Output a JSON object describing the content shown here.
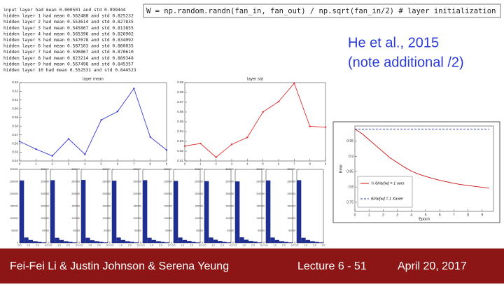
{
  "log_lines": [
    "input layer had mean 0.000501 and std 0.999444",
    "hidden layer 1 had mean 0.562488 and std 0.825232",
    "hidden layer 2 had mean 0.553614 and std 0.827835",
    "hidden layer 3 had mean 0.545867 and std 0.813855",
    "hidden layer 4 had mean 0.565396 and std 0.826902",
    "hidden layer 5 had mean 0.547678 and std 0.834092",
    "hidden layer 6 had mean 0.587103 and std 0.860035",
    "hidden layer 7 had mean 0.596867 and std 0.870610",
    "hidden layer 8 had mean 0.623214 and std 0.889348",
    "hidden layer 9 had mean 0.567498 and std 0.845357",
    "hidden layer 10 had mean 0.552531 and std 0.844523"
  ],
  "code": "W = np.random.randn(fan_in, fan_out) / np.sqrt(fan_in/2) # layer initialization",
  "citation": [
    "He et al., 2015",
    "(note additional /2)"
  ],
  "footer": {
    "authors": "Fei-Fei Li & Justin Johnson & Serena Yeung",
    "lecture": "Lecture 6 - 51",
    "date": "April 20, 2017"
  },
  "chart_data": [
    {
      "type": "line",
      "title": "layer mean",
      "color": "#3b3bd6",
      "x": [
        0,
        1,
        2,
        3,
        4,
        5,
        6,
        7,
        8,
        9
      ],
      "values": [
        0.562488,
        0.553614,
        0.545867,
        0.565396,
        0.547678,
        0.587103,
        0.596867,
        0.623214,
        0.567498,
        0.552531
      ],
      "xlim": [
        0,
        9
      ],
      "xticks": [
        0,
        1,
        2,
        3,
        4,
        5,
        6,
        7,
        8,
        9
      ],
      "ylim": [
        0.54,
        0.63
      ],
      "yticks": [
        0.54,
        0.55,
        0.56,
        0.57,
        0.58,
        0.59,
        {
          "value": 0.6,
          "label": "0.60"
        },
        0.61,
        0.62,
        0.63
      ]
    },
    {
      "type": "line",
      "title": "layer std",
      "color": "#e03030",
      "x": [
        0,
        1,
        2,
        3,
        4,
        5,
        6,
        7,
        8,
        9
      ],
      "values": [
        0.825232,
        0.827835,
        0.813855,
        0.826902,
        0.834092,
        0.860035,
        0.87061,
        0.889348,
        0.845357,
        0.844523
      ],
      "xlim": [
        0,
        9
      ],
      "xticks": [
        0,
        1,
        2,
        3,
        4,
        5,
        6,
        7,
        8,
        9
      ],
      "ylim": [
        0.81,
        0.89
      ],
      "yticks": [
        0.81,
        0.82,
        0.83,
        0.84,
        0.85,
        0.86,
        0.87,
        0.88,
        0.89
      ]
    },
    {
      "type": "histogram",
      "color": "#1f2f8f",
      "bins": [
        0,
        0.5,
        1,
        1.5,
        2,
        2.5,
        3
      ],
      "values": [
        255000,
        22000,
        12000,
        7000,
        4000,
        2000
      ],
      "xlim": [
        0,
        3
      ],
      "ylim": [
        0,
        300000
      ],
      "yticks": [
        0,
        50000,
        100000,
        150000,
        200000,
        250000,
        300000
      ],
      "xticks": [
        {
          "value": 0,
          "label": "0.0"
        },
        {
          "value": 1,
          "label": "1.0"
        },
        {
          "value": 2,
          "label": "2.0"
        },
        {
          "value": 3,
          "label": "3.0"
        }
      ]
    },
    {
      "type": "histogram",
      "color": "#1f2f8f",
      "bins": [
        0,
        0.5,
        1,
        1.5,
        2,
        2.5,
        3
      ],
      "values": [
        256000,
        21000,
        12000,
        7000,
        4000,
        2000
      ],
      "xlim": [
        0,
        3
      ],
      "ylim": [
        0,
        300000
      ],
      "yticks": [
        0,
        50000,
        100000,
        150000,
        200000,
        250000,
        300000
      ],
      "xticks": [
        {
          "value": 0,
          "label": "0.0"
        },
        {
          "value": 1,
          "label": "1.0"
        },
        {
          "value": 2,
          "label": "2.0"
        },
        {
          "value": 3,
          "label": "3.0"
        }
      ]
    },
    {
      "type": "histogram",
      "color": "#1f2f8f",
      "bins": [
        0,
        0.5,
        1,
        1.5,
        2,
        2.5,
        3
      ],
      "values": [
        257000,
        21000,
        11000,
        7000,
        4000,
        2000
      ],
      "xlim": [
        0,
        3
      ],
      "ylim": [
        0,
        300000
      ],
      "yticks": [
        0,
        50000,
        100000,
        150000,
        200000,
        250000,
        300000
      ],
      "xticks": [
        {
          "value": 0,
          "label": "0.0"
        },
        {
          "value": 1,
          "label": "1.0"
        },
        {
          "value": 2,
          "label": "2.0"
        },
        {
          "value": 3,
          "label": "3.0"
        }
      ]
    },
    {
      "type": "histogram",
      "color": "#1f2f8f",
      "bins": [
        0,
        0.5,
        1,
        1.5,
        2,
        2.5,
        3
      ],
      "values": [
        254000,
        22000,
        12000,
        7000,
        4000,
        2000
      ],
      "xlim": [
        0,
        3
      ],
      "ylim": [
        0,
        300000
      ],
      "yticks": [
        0,
        50000,
        100000,
        150000,
        200000,
        250000,
        300000
      ],
      "xticks": [
        {
          "value": 0,
          "label": "0.0"
        },
        {
          "value": 1,
          "label": "1.0"
        },
        {
          "value": 2,
          "label": "2.0"
        },
        {
          "value": 3,
          "label": "3.0"
        }
      ]
    },
    {
      "type": "histogram",
      "color": "#1f2f8f",
      "bins": [
        0,
        0.5,
        1,
        1.5,
        2,
        2.5,
        3
      ],
      "values": [
        256000,
        21000,
        12000,
        7000,
        4000,
        2000
      ],
      "xlim": [
        0,
        3
      ],
      "ylim": [
        0,
        300000
      ],
      "yticks": [
        0,
        50000,
        100000,
        150000,
        200000,
        250000,
        300000
      ],
      "xticks": [
        {
          "value": 0,
          "label": "0.0"
        },
        {
          "value": 1,
          "label": "1.0"
        },
        {
          "value": 2,
          "label": "2.0"
        },
        {
          "value": 3,
          "label": "3.0"
        }
      ]
    },
    {
      "type": "histogram",
      "color": "#1f2f8f",
      "bins": [
        0,
        0.5,
        1,
        1.5,
        2,
        2.5,
        3
      ],
      "values": [
        253000,
        22000,
        12000,
        8000,
        4000,
        2000
      ],
      "xlim": [
        0,
        3
      ],
      "ylim": [
        0,
        300000
      ],
      "yticks": [
        0,
        50000,
        100000,
        150000,
        200000,
        250000,
        300000
      ],
      "xticks": [
        {
          "value": 0,
          "label": "0.0"
        },
        {
          "value": 1,
          "label": "1.0"
        },
        {
          "value": 2,
          "label": "2.0"
        },
        {
          "value": 3,
          "label": "3.0"
        }
      ]
    },
    {
      "type": "histogram",
      "color": "#1f2f8f",
      "bins": [
        0,
        0.5,
        1,
        1.5,
        2,
        2.5,
        3
      ],
      "values": [
        252000,
        22000,
        13000,
        8000,
        4000,
        2000
      ],
      "xlim": [
        0,
        3
      ],
      "ylim": [
        0,
        300000
      ],
      "yticks": [
        0,
        50000,
        100000,
        150000,
        200000,
        250000,
        300000
      ],
      "xticks": [
        {
          "value": 0,
          "label": "0.0"
        },
        {
          "value": 1,
          "label": "1.0"
        },
        {
          "value": 2,
          "label": "2.0"
        },
        {
          "value": 3,
          "label": "3.0"
        }
      ]
    },
    {
      "type": "histogram",
      "color": "#1f2f8f",
      "bins": [
        0,
        0.5,
        1,
        1.5,
        2,
        2.5,
        3
      ],
      "values": [
        251000,
        23000,
        13000,
        8000,
        5000,
        2000
      ],
      "xlim": [
        0,
        3
      ],
      "ylim": [
        0,
        300000
      ],
      "yticks": [
        0,
        50000,
        100000,
        150000,
        200000,
        250000,
        300000
      ],
      "xticks": [
        {
          "value": 0,
          "label": "0.0"
        },
        {
          "value": 1,
          "label": "1.0"
        },
        {
          "value": 2,
          "label": "2.0"
        },
        {
          "value": 3,
          "label": "3.0"
        }
      ]
    },
    {
      "type": "histogram",
      "color": "#1f2f8f",
      "bins": [
        0,
        0.5,
        1,
        1.5,
        2,
        2.5,
        3
      ],
      "values": [
        255000,
        22000,
        12000,
        7000,
        4000,
        2000
      ],
      "xlim": [
        0,
        3
      ],
      "ylim": [
        0,
        300000
      ],
      "yticks": [
        0,
        50000,
        100000,
        150000,
        200000,
        250000,
        300000
      ],
      "xticks": [
        {
          "value": 0,
          "label": "0.0"
        },
        {
          "value": 1,
          "label": "1.0"
        },
        {
          "value": 2,
          "label": "2.0"
        },
        {
          "value": 3,
          "label": "3.0"
        }
      ]
    },
    {
      "type": "histogram",
      "color": "#1f2f8f",
      "bins": [
        0,
        0.5,
        1,
        1.5,
        2,
        2.5,
        3
      ],
      "values": [
        256000,
        21000,
        12000,
        7000,
        4000,
        2000
      ],
      "xlim": [
        0,
        3
      ],
      "ylim": [
        0,
        300000
      ],
      "yticks": [
        0,
        50000,
        100000,
        150000,
        200000,
        250000,
        300000
      ],
      "xticks": [
        {
          "value": 0,
          "label": "0.0"
        },
        {
          "value": 1,
          "label": "1.0"
        },
        {
          "value": 2,
          "label": "2.0"
        },
        {
          "value": 3,
          "label": "3.0"
        }
      ]
    },
    {
      "type": "multiline",
      "x_label": "Epoch",
      "y_label": "Error",
      "x": [
        0,
        0.5,
        1,
        1.5,
        2,
        2.5,
        3,
        3.5,
        4,
        4.5,
        5,
        5.5,
        6,
        6.5,
        7,
        7.5,
        8,
        8.5,
        9,
        9.5
      ],
      "series": [
        {
          "name": "½ θᵢVar[wᵢ] = 1   ours",
          "color": "#cc1111",
          "dash": false,
          "values": [
            0.99,
            0.975,
            0.955,
            0.935,
            0.915,
            0.895,
            0.88,
            0.865,
            0.852,
            0.842,
            0.835,
            0.828,
            0.822,
            0.817,
            0.812,
            0.808,
            0.805,
            0.802,
            0.799,
            0.796
          ]
        },
        {
          "name": "θᵢVar[wᵢ] = 1   Xavier",
          "color": "#2233aa",
          "dash": true,
          "values": [
            0.99,
            0.99,
            0.99,
            0.99,
            0.99,
            0.99,
            0.99,
            0.99,
            0.99,
            0.99,
            0.99,
            0.99,
            0.99,
            0.99,
            0.99,
            0.99,
            0.99,
            0.99,
            0.99,
            0.99
          ]
        }
      ],
      "xlim": [
        0,
        9.8
      ],
      "xticks": [
        0,
        1,
        2,
        3,
        4,
        5,
        6,
        7,
        8,
        9
      ],
      "ylim": [
        0.72,
        1.0
      ],
      "yticks": [
        0.75,
        0.8,
        0.85,
        0.9,
        0.95
      ]
    }
  ]
}
